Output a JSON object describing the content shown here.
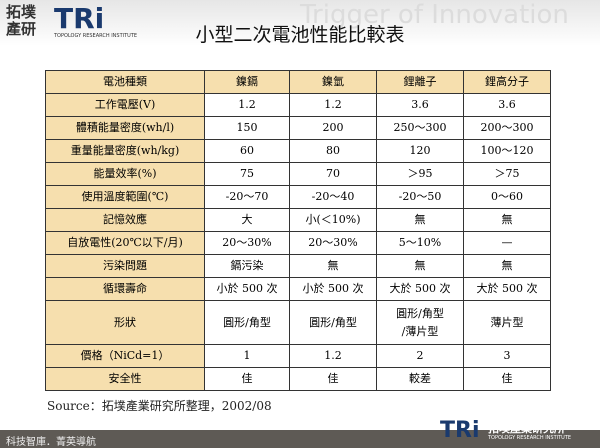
{
  "header": {
    "logo_cn": "拓墣產研",
    "logo_en": "TRi",
    "logo_sub": "TOPOLOGY RESEARCH INSTITUTE",
    "tagline": "Trigger of Innovation"
  },
  "title": "小型二次電池性能比較表",
  "table": {
    "header": [
      "電池種類",
      "鎳鎘",
      "鎳氫",
      "鋰離子",
      "鋰高分子"
    ],
    "rows": [
      [
        "工作電壓(V)",
        "1.2",
        "1.2",
        "3.6",
        "3.6"
      ],
      [
        "體積能量密度(wh/l)",
        "150",
        "200",
        "250～300",
        "200～300"
      ],
      [
        "重量能量密度(wh/kg)",
        "60",
        "80",
        "120",
        "100～120"
      ],
      [
        "能量效率(%)",
        "75",
        "70",
        "＞95",
        "＞75"
      ],
      [
        "使用溫度範圍(℃)",
        "-20～70",
        "-20～40",
        "-20～50",
        "0～60"
      ],
      [
        "記憶效應",
        "大",
        "小(＜10%)",
        "無",
        "無"
      ],
      [
        "自放電性(20℃以下/月)",
        "20～30%",
        "20～30%",
        "5～10%",
        "—"
      ],
      [
        "污染問題",
        "鎘污染",
        "無",
        "無",
        "無"
      ],
      [
        "循環壽命",
        "小於 500 次",
        "小於 500 次",
        "大於 500 次",
        "大於 500 次"
      ],
      [
        "形狀",
        "圓形/角型",
        "圓形/角型",
        "圓形/角型\n/薄片型",
        "薄片型"
      ],
      [
        "價格（NiCd=1）",
        "1",
        "1.2",
        "2",
        "3"
      ],
      [
        "安全性",
        "佳",
        "佳",
        "較差",
        "佳"
      ]
    ]
  },
  "source": "Source：拓墣產業研究所整理，2002/08",
  "footer": {
    "slogan": "科技智庫．菁英導航",
    "logo_en": "TRi",
    "logo_cn": "拓墣產業研究所",
    "logo_sub": "TOPOLOGY RESEARCH INSTITUTE"
  }
}
